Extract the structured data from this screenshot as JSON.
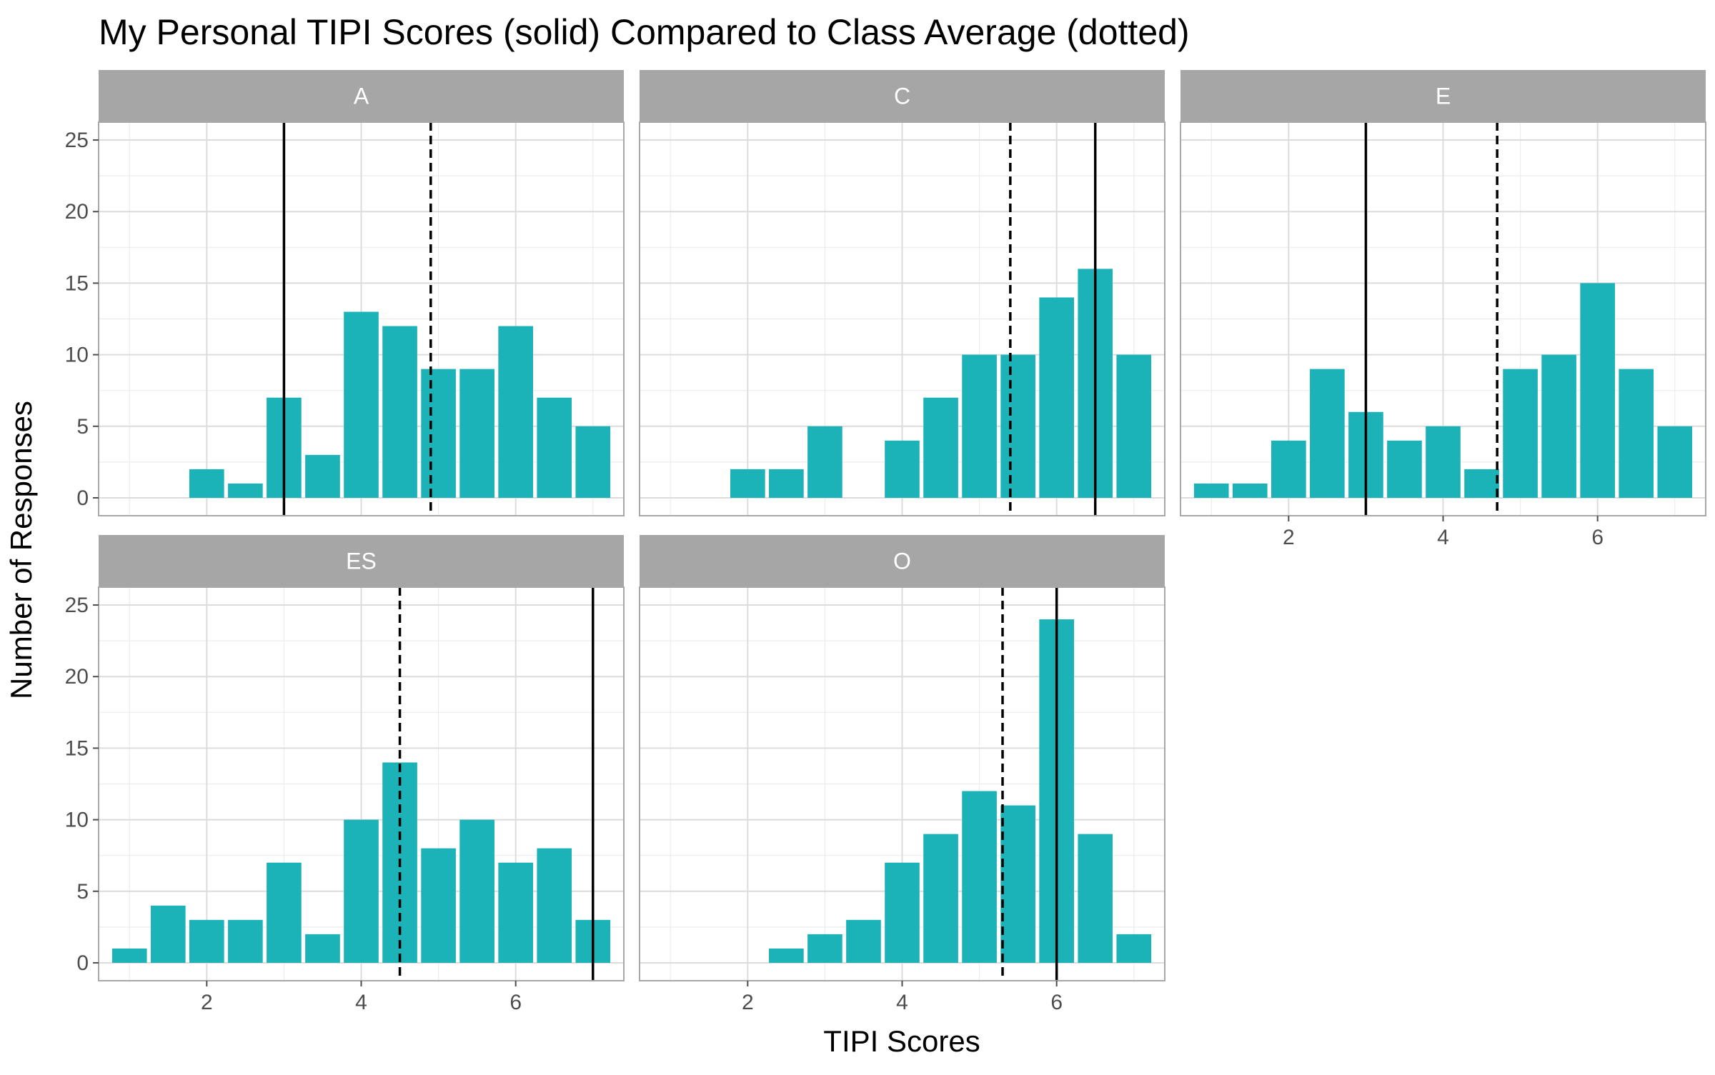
{
  "chart_data": {
    "type": "bar",
    "title": "My Personal TIPI Scores (solid) Compared to Class Average (dotted)",
    "xlabel": "TIPI Scores",
    "ylabel": "Number of Responses",
    "x": [
      1,
      1.5,
      2,
      2.5,
      3,
      3.5,
      4,
      4.5,
      5,
      5.5,
      6,
      6.5,
      7
    ],
    "xlim": [
      0.6,
      7.4
    ],
    "ylim": [
      -1.25,
      26.25
    ],
    "xticks": [
      2,
      4,
      6
    ],
    "yticks": [
      0,
      5,
      10,
      15,
      20,
      25
    ],
    "grid": true,
    "bar_color": "#1bb3b8",
    "strip_color": "#a6a6a6",
    "series": [
      {
        "name": "A",
        "values": [
          0,
          0,
          2,
          1,
          7,
          3,
          13,
          12,
          9,
          9,
          12,
          7,
          5
        ],
        "personal": 3.0,
        "class_average": 4.9
      },
      {
        "name": "C",
        "values": [
          0,
          0,
          2,
          2,
          5,
          0,
          4,
          7,
          10,
          10,
          14,
          16,
          10
        ],
        "personal": 6.5,
        "class_average": 5.4
      },
      {
        "name": "E",
        "values": [
          1,
          1,
          4,
          9,
          6,
          4,
          5,
          2,
          9,
          10,
          15,
          9,
          5
        ],
        "personal": 3.0,
        "class_average": 4.7
      },
      {
        "name": "ES",
        "values": [
          1,
          4,
          3,
          3,
          7,
          2,
          10,
          14,
          8,
          10,
          7,
          8,
          3
        ],
        "personal": 7.0,
        "class_average": 4.5
      },
      {
        "name": "O",
        "values": [
          0,
          0,
          0,
          1,
          2,
          3,
          7,
          9,
          12,
          11,
          24,
          9,
          2
        ],
        "personal": 6.0,
        "class_average": 5.3
      }
    ]
  }
}
